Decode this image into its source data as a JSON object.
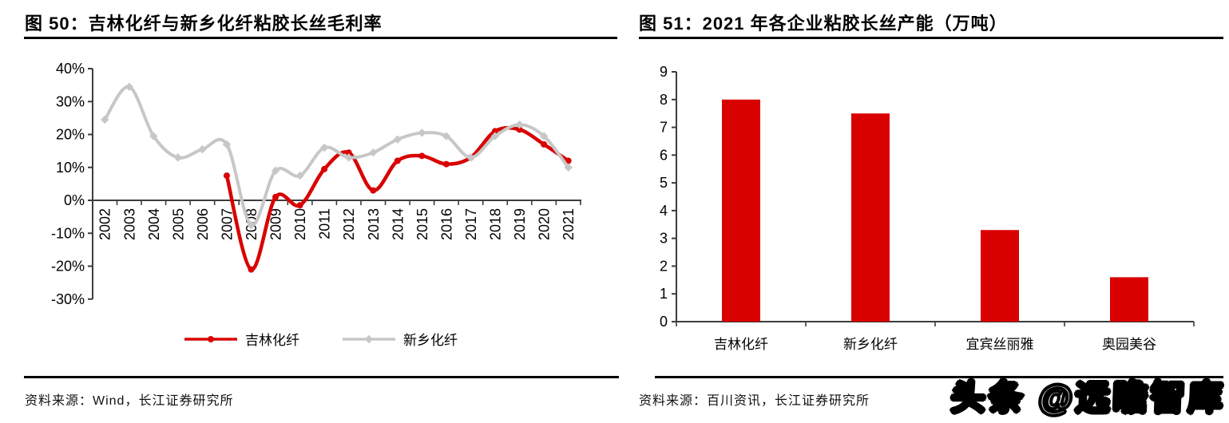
{
  "figures": [
    {
      "title": "图 50：吉林化纤与新乡化纤粘胶长丝毛利率",
      "source": "资料来源：Wind，长江证券研究所"
    },
    {
      "title": "图 51：2021 年各企业粘胶长丝产能（万吨）",
      "source": "资料来源：百川资讯，长江证券研究所"
    }
  ],
  "watermark": {
    "text": "头条 @远瞻智库"
  },
  "colors": {
    "series_red": "#D90000",
    "series_gray": "#C7C7C7",
    "axis": "#3d3d3d",
    "text": "#000000",
    "rule": "#000000"
  },
  "chart_data": [
    {
      "type": "line",
      "title": "吉林化纤与新乡化纤粘胶长丝毛利率",
      "x": [
        "2002",
        "2003",
        "2004",
        "2005",
        "2006",
        "2007",
        "2008",
        "2009",
        "2010",
        "2011",
        "2012",
        "2013",
        "2014",
        "2015",
        "2016",
        "2017",
        "2018",
        "2019",
        "2020",
        "2021"
      ],
      "ylim": [
        -30,
        40
      ],
      "ytick_step": 10,
      "ytick_suffix": "%",
      "grid": false,
      "legend_position": "bottom",
      "line_smooth": true,
      "series": [
        {
          "name": "吉林化纤",
          "color": "#D90000",
          "marker": "circle",
          "values": [
            null,
            null,
            null,
            null,
            null,
            7.5,
            -21,
            1,
            -1.5,
            9.5,
            14.5,
            3,
            12,
            13.5,
            11,
            13,
            21,
            21.5,
            17,
            12
          ]
        },
        {
          "name": "新乡化纤",
          "color": "#C7C7C7",
          "marker": "diamond",
          "values": [
            24.5,
            34.5,
            19.5,
            13,
            15.5,
            17,
            -7.5,
            9,
            7.5,
            16,
            13,
            14.5,
            18.5,
            20.5,
            19.5,
            13,
            19.5,
            23,
            19.5,
            10
          ]
        }
      ]
    },
    {
      "type": "bar",
      "title": "2021 年各企业粘胶长丝产能（万吨）",
      "categories": [
        "吉林化纤",
        "新乡化纤",
        "宜宾丝丽雅",
        "奥园美谷"
      ],
      "values": [
        8,
        7.5,
        3.3,
        1.6
      ],
      "bar_color": "#D90000",
      "ylim": [
        0,
        9
      ],
      "ytick_step": 1,
      "grid": false,
      "unit": "万吨"
    }
  ]
}
